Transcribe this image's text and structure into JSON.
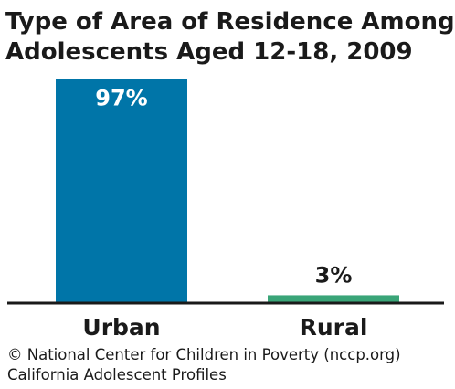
{
  "chart_data": {
    "type": "bar",
    "title_lines": [
      "Type of Area of Residence Among",
      "Adolescents Aged 12-18, 2009"
    ],
    "categories": [
      "Urban",
      "Rural"
    ],
    "values": [
      97,
      3
    ],
    "data_labels": [
      "97%",
      "3%"
    ],
    "colors": [
      "#0075a8",
      "#3aa578"
    ],
    "data_label_colors": [
      "#ffffff",
      "#1a1a1a"
    ],
    "ylim": [
      0,
      100
    ],
    "grid": false,
    "legend": "none"
  },
  "footer": {
    "line1": "© National Center for Children in Poverty (nccp.org)",
    "line2": "California Adolescent Profiles"
  }
}
